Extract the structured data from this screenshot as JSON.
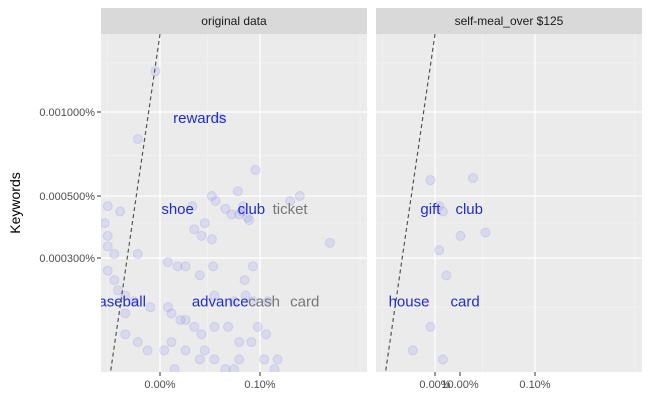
{
  "chart_data": {
    "type": "scatter",
    "ylabel": "Keywords",
    "xlabel": "",
    "x_scale": "log",
    "y_scale": "log",
    "x_ticks": [
      "0.00%",
      "0.10%",
      "10.00%"
    ],
    "y_ticks": [
      "0.000300%",
      "0.000500%",
      "0.001000%"
    ],
    "grid": true,
    "point_color": "#8a8cf0",
    "colors": {
      "blue_word": "#1f2ccf",
      "gray_word": "#777777",
      "panel_bg": "#ebebeb",
      "strip_bg": "#d9d9d9"
    },
    "panels": [
      {
        "title": "original data",
        "points": [
          [
            0.0009,
            0.0014
          ],
          [
            0.004,
            0.00095
          ],
          [
            0.0006,
            0.0008
          ],
          [
            0.009,
            0.00062
          ],
          [
            0.006,
            0.00052
          ],
          [
            0.025,
            0.0005
          ],
          [
            0.02,
            0.00048
          ],
          [
            0.0002,
            0.0005
          ],
          [
            0.00015,
            0.0005
          ],
          [
            0.0003,
            0.00046
          ],
          [
            0.0004,
            0.00044
          ],
          [
            0.0033,
            0.0005
          ],
          [
            0.0036,
            0.00048
          ],
          [
            0.0045,
            0.00045
          ],
          [
            0.0052,
            0.00043
          ],
          [
            0.0062,
            0.00043
          ],
          [
            0.0075,
            0.00042
          ],
          [
            0.0078,
            0.00041
          ],
          [
            0.0066,
            0.00044
          ],
          [
            0.0068,
            0.00046
          ],
          [
            0.0021,
            0.00046
          ],
          [
            0.0028,
            0.0004
          ],
          [
            0.0022,
            0.00038
          ],
          [
            0.0026,
            0.00036
          ],
          [
            0.0033,
            0.00035
          ],
          [
            0.00028,
            0.0004
          ],
          [
            0.0003,
            0.00036
          ],
          [
            0.0003,
            0.00033
          ],
          [
            0.00035,
            0.00031
          ],
          [
            0.0006,
            0.00031
          ],
          [
            0.0012,
            0.00029
          ],
          [
            0.0015,
            0.00028
          ],
          [
            0.0018,
            0.00028
          ],
          [
            0.0025,
            0.00026
          ],
          [
            0.0034,
            0.00028
          ],
          [
            0.007,
            0.00025
          ],
          [
            0.0085,
            0.00028
          ],
          [
            0.0003,
            0.00027
          ],
          [
            0.00035,
            0.00025
          ],
          [
            0.00038,
            0.00023
          ],
          [
            0.00045,
            0.00022
          ],
          [
            0.00055,
            0.00021
          ],
          [
            0.0008,
            0.0002
          ],
          [
            0.0012,
            0.0002
          ],
          [
            0.0013,
            0.00019
          ],
          [
            0.0016,
            0.00018
          ],
          [
            0.0018,
            0.00018
          ],
          [
            0.0022,
            0.00017
          ],
          [
            0.0026,
            0.00016
          ],
          [
            0.0035,
            0.00017
          ],
          [
            0.0048,
            0.00017
          ],
          [
            0.0062,
            0.00015
          ],
          [
            0.0082,
            0.00015
          ],
          [
            0.0095,
            0.00017
          ],
          [
            0.0115,
            0.00016
          ],
          [
            0.0035,
            0.00022
          ],
          [
            0.0055,
            0.00021
          ],
          [
            0.0072,
            0.00022
          ],
          [
            0.0085,
            0.00021
          ],
          [
            0.00045,
            0.00019
          ],
          [
            0.00045,
            0.00016
          ],
          [
            0.0006,
            0.00015
          ],
          [
            0.00075,
            0.00014
          ],
          [
            0.0011,
            0.00014
          ],
          [
            0.0013,
            0.00015
          ],
          [
            0.0018,
            0.00014
          ],
          [
            0.0025,
            0.00013
          ],
          [
            0.0028,
            0.00014
          ],
          [
            0.0035,
            0.00013
          ],
          [
            0.0045,
            0.00012
          ],
          [
            0.0055,
            0.00012
          ],
          [
            0.0062,
            0.00013
          ],
          [
            0.011,
            0.00013
          ],
          [
            0.014,
            0.00012
          ],
          [
            0.012,
            0.00021
          ],
          [
            0.015,
            0.00013
          ],
          [
            0.05,
            0.00034
          ],
          [
            0.0014,
            0.00012
          ]
        ],
        "trend": [
          [
            0.0003,
            0.0001
          ],
          [
            0.001,
            0.0019
          ]
        ],
        "labels": [
          {
            "text": "rewards",
            "x": 0.0025,
            "y": 0.00095,
            "color": "blue"
          },
          {
            "text": "shoe",
            "x": 0.0015,
            "y": 0.00045,
            "color": "blue"
          },
          {
            "text": "club",
            "x": 0.0082,
            "y": 0.00045,
            "color": "blue"
          },
          {
            "text": "ticket",
            "x": 0.02,
            "y": 0.00045,
            "color": "gray"
          },
          {
            "text": "baseball",
            "x": 0.00038,
            "y": 0.00021,
            "color": "blue"
          },
          {
            "text": "advance",
            "x": 0.004,
            "y": 0.00021,
            "color": "blue"
          },
          {
            "text": "cash",
            "x": 0.011,
            "y": 0.00021,
            "color": "gray"
          },
          {
            "text": "card",
            "x": 0.028,
            "y": 0.00021,
            "color": "gray"
          }
        ]
      },
      {
        "title": "self-meal_over $125",
        "points": [
          [
            0.0009,
            0.00057
          ],
          [
            0.0024,
            0.00058
          ],
          [
            0.0011,
            0.00046
          ],
          [
            0.0012,
            0.00044
          ],
          [
            0.0018,
            0.00036
          ],
          [
            0.0032,
            0.00037
          ],
          [
            0.0011,
            0.00032
          ],
          [
            0.0013,
            0.00026
          ],
          [
            0.0009,
            0.00017
          ],
          [
            0.0006,
            0.00014
          ],
          [
            0.0012,
            0.00013
          ]
        ],
        "trend": [
          [
            0.0003,
            0.0001
          ],
          [
            0.001,
            0.0019
          ]
        ],
        "labels": [
          {
            "text": "gift",
            "x": 0.0009,
            "y": 0.00045,
            "color": "blue"
          },
          {
            "text": "club",
            "x": 0.0022,
            "y": 0.00045,
            "color": "blue"
          },
          {
            "text": "house",
            "x": 0.00055,
            "y": 0.00021,
            "color": "blue"
          },
          {
            "text": "card",
            "x": 0.002,
            "y": 0.00021,
            "color": "blue"
          }
        ]
      }
    ]
  }
}
